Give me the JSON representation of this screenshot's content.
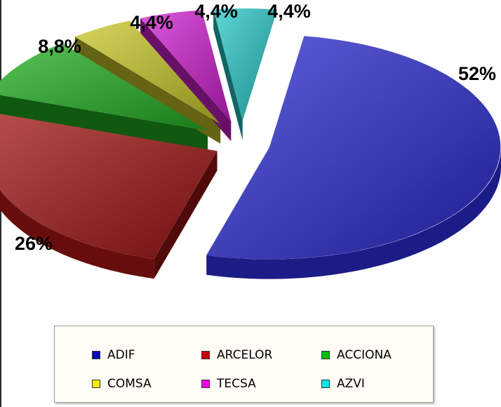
{
  "chart_data": {
    "type": "pie",
    "categories": [
      "ADIF",
      "ARCELOR",
      "ACCIONA",
      "COMSA",
      "TECSA",
      "AZVI"
    ],
    "values": [
      52,
      26,
      8.8,
      4.4,
      4.4,
      4.4
    ],
    "labels": [
      "52%",
      "26%",
      "8,8%",
      "4,4%",
      "4,4%",
      "4,4%"
    ],
    "colors": [
      "#2b2bd0",
      "#a01414",
      "#22b022",
      "#c8c828",
      "#d020d0",
      "#28c8c8"
    ],
    "exploded": true,
    "three_d": true,
    "legend_position": "bottom",
    "legend": [
      {
        "name": "ADIF",
        "color": "#0a0ab4"
      },
      {
        "name": "ARCELOR",
        "color": "#c80000"
      },
      {
        "name": "ACCIONA",
        "color": "#00c000"
      },
      {
        "name": "COMSA",
        "color": "#f0f000"
      },
      {
        "name": "TECSA",
        "color": "#f000f0"
      },
      {
        "name": "AZVI",
        "color": "#00e6e6"
      }
    ]
  }
}
